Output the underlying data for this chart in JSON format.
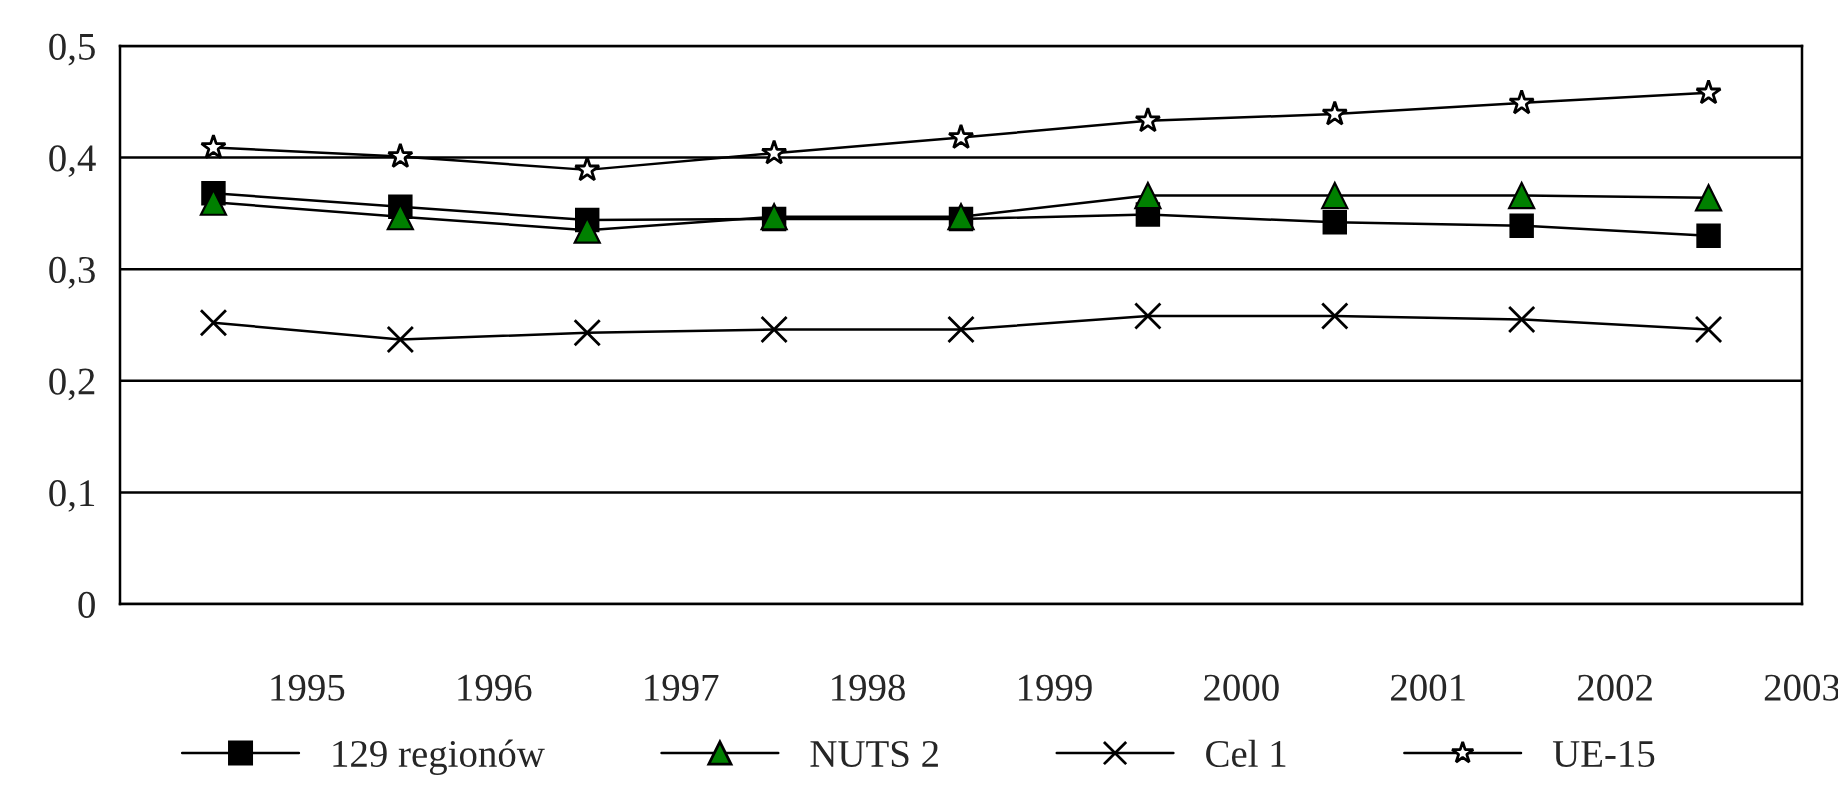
{
  "chart_data": {
    "type": "line",
    "x": [
      1994.5,
      1995.5,
      1996.5,
      1997.5,
      1998.5,
      1999.5,
      2000.5,
      2001.5,
      2002.5
    ],
    "series": [
      {
        "name": "129 regionów",
        "color": "#000000",
        "marker": "square",
        "values": [
          0.368,
          0.356,
          0.344,
          0.345,
          0.345,
          0.349,
          0.342,
          0.339,
          0.33
        ]
      },
      {
        "name": "NUTS 2",
        "color": "#008000",
        "marker": "triangle",
        "values": [
          0.36,
          0.347,
          0.335,
          0.347,
          0.347,
          0.366,
          0.366,
          0.366,
          0.364
        ]
      },
      {
        "name": "Cel 1",
        "color": "#000000",
        "marker": "cross",
        "values": [
          0.252,
          0.237,
          0.243,
          0.246,
          0.246,
          0.258,
          0.258,
          0.255,
          0.246
        ]
      },
      {
        "name": "UE-15",
        "color": "#000000",
        "marker": "star",
        "values": [
          0.409,
          0.401,
          0.389,
          0.404,
          0.418,
          0.433,
          0.439,
          0.449,
          0.458
        ]
      }
    ],
    "xlim": [
      1994,
      2003
    ],
    "xticks": [
      {
        "value": 1994,
        "label": null
      },
      1995,
      1996,
      1997,
      1998,
      1999,
      2000,
      2001,
      2002,
      2003
    ],
    "ylim": [
      0,
      0.5
    ],
    "yticks": [
      0,
      {
        "value": 0.1,
        "label": "0,1"
      },
      {
        "value": 0.2,
        "label": "0,2"
      },
      {
        "value": 0.3,
        "label": "0,3"
      },
      {
        "value": 0.4,
        "label": "0,4"
      },
      {
        "value": 0.5,
        "label": "0,5"
      }
    ],
    "grid": "y",
    "legend": "bottom",
    "line_style": "solid"
  }
}
